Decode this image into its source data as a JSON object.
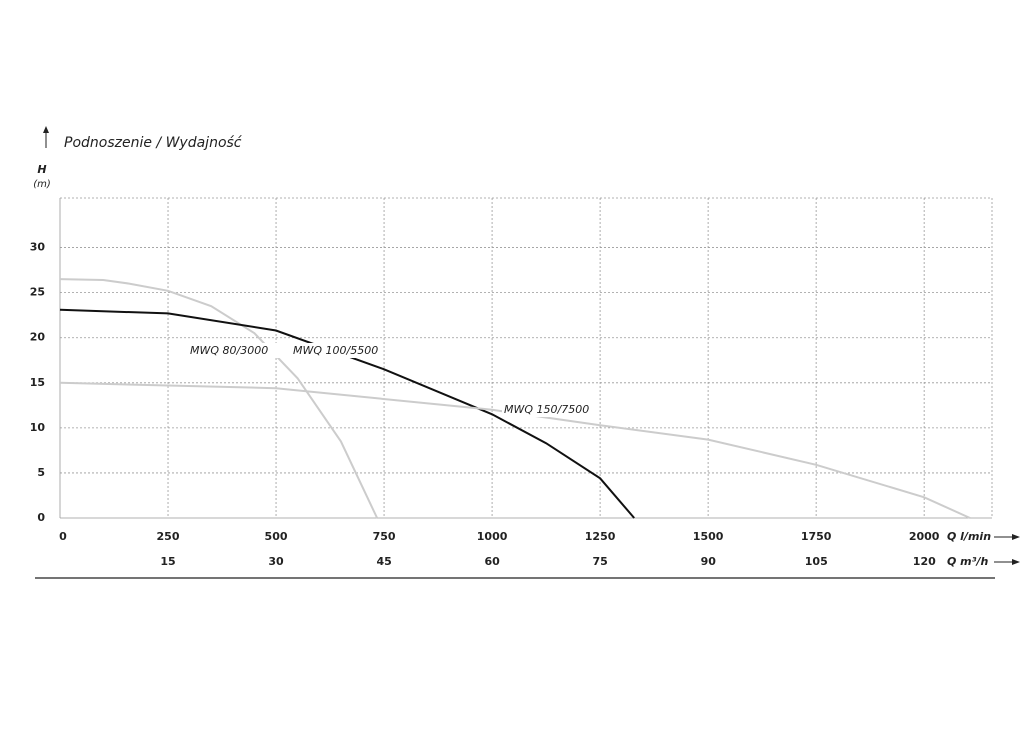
{
  "chart_data": {
    "type": "line",
    "title": "Podnoszenie / Wydajność",
    "ylabel": "H",
    "yunit": "(m)",
    "xlabel": "Q l/min",
    "x2label": "Q m³/h",
    "xlim": [
      0,
      2157
    ],
    "xticks": [
      0,
      250,
      500,
      750,
      1000,
      1250,
      1500,
      1750,
      2000
    ],
    "x2lim": [
      0,
      129.4
    ],
    "x2ticks": [
      15,
      30,
      45,
      60,
      75,
      90,
      105,
      120
    ],
    "ylim": [
      0,
      35.5
    ],
    "yticks": [
      0,
      5,
      10,
      15,
      20,
      25,
      30
    ],
    "grid": true,
    "series": [
      {
        "name": "MWQ 80/3000",
        "color": "#cccccc",
        "x": [
          0,
          100,
          160,
          250,
          350,
          450,
          550,
          650,
          734
        ],
        "values": [
          26.5,
          26.4,
          26,
          25.2,
          23.5,
          20.5,
          15.5,
          8.5,
          0
        ]
      },
      {
        "name": "MWQ 100/5500",
        "color": "#111111",
        "x": [
          0,
          250,
          500,
          750,
          1000,
          1125,
          1250,
          1329
        ],
        "values": [
          23.1,
          22.7,
          20.8,
          16.5,
          11.5,
          8.3,
          4.4,
          0
        ]
      },
      {
        "name": "MWQ 150/7500",
        "color": "#cccccc",
        "x": [
          0,
          500,
          1000,
          1250,
          1500,
          1750,
          2000,
          2106
        ],
        "values": [
          15,
          14.4,
          12,
          10.3,
          8.7,
          5.9,
          2.3,
          0
        ]
      }
    ]
  }
}
